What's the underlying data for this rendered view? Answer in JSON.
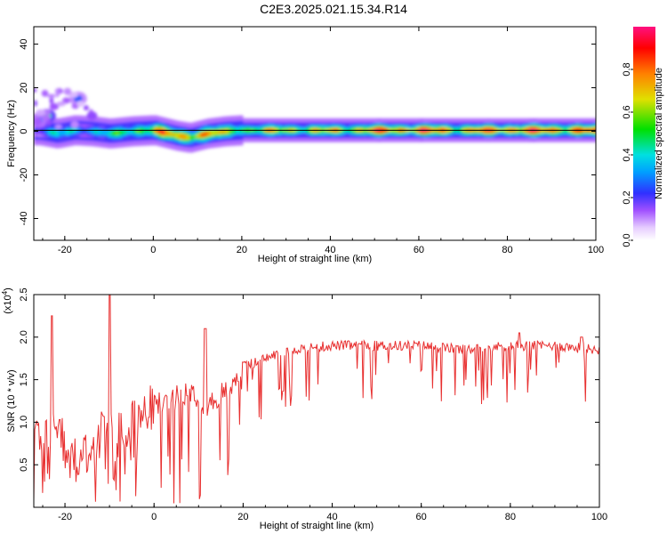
{
  "title": "C2E3.2025.021.15.34.R14",
  "chart_data": [
    {
      "type": "heatmap",
      "xlabel": "Height of straight line (km)",
      "ylabel": "Frequency (Hz)",
      "xlim": [
        -27,
        100
      ],
      "ylim": [
        -50,
        48
      ],
      "xticks": [
        -20,
        0,
        20,
        40,
        60,
        80,
        100
      ],
      "yticks": [
        -40,
        -20,
        0,
        20,
        40
      ],
      "colorbar": {
        "label": "Normalized spectral amplitude",
        "ticks": [
          0.0,
          0.2,
          0.4,
          0.6,
          0.8
        ],
        "range": [
          0,
          1
        ]
      },
      "ridge": {
        "x": [
          -26,
          -22,
          -18,
          -14,
          -10,
          -5,
          0,
          5,
          8,
          12,
          16,
          20,
          30,
          40,
          50,
          60,
          70,
          80,
          90,
          99
        ],
        "frequency": [
          0.5,
          -1,
          0.5,
          0,
          -1,
          0,
          0.5,
          -2,
          -3,
          -1,
          0,
          0.5,
          0.5,
          0.5,
          0.5,
          0.5,
          0.5,
          0.5,
          0.5,
          0.5
        ],
        "amplitude": [
          0.35,
          0.45,
          0.4,
          0.45,
          0.5,
          0.55,
          0.9,
          0.75,
          0.95,
          0.9,
          0.6,
          0.7,
          0.75,
          0.75,
          0.9,
          0.95,
          0.8,
          0.95,
          0.95,
          0.9
        ]
      },
      "secondary_blobs": [
        {
          "x": -24,
          "frequency": 7,
          "amplitude": 0.45
        },
        {
          "x": -17,
          "frequency": 15,
          "amplitude": 0.25
        },
        {
          "x": -26,
          "frequency": 5,
          "amplitude": 0.3
        }
      ]
    },
    {
      "type": "line",
      "xlabel": "Height of straight line (km)",
      "ylabel": "SNR (10 * v/v)",
      "y_multiplier_label": "(x10",
      "y_multiplier_exp": "4",
      "xlim": [
        -27,
        100
      ],
      "ylim": [
        0,
        2.5
      ],
      "xticks": [
        -20,
        0,
        20,
        40,
        60,
        80,
        100
      ],
      "yticks": [
        0.5,
        1.0,
        1.5,
        2.0,
        2.5
      ],
      "series": [
        {
          "color": "#e83030",
          "envelope_x": [
            -27,
            -24,
            -22,
            -20,
            -16,
            -12,
            -10,
            -8,
            -4,
            0,
            4,
            8,
            10,
            12,
            16,
            20,
            25,
            30,
            40,
            50,
            60,
            70,
            80,
            90,
            100
          ],
          "envelope_y": [
            0.8,
            0.9,
            1.0,
            0.7,
            0.6,
            0.85,
            1.0,
            0.9,
            1.0,
            1.2,
            1.25,
            1.4,
            1.3,
            1.2,
            1.35,
            1.65,
            1.75,
            1.85,
            1.9,
            1.9,
            1.9,
            1.85,
            1.9,
            1.9,
            1.85
          ],
          "peaks": [
            {
              "x": -23,
              "y": 2.25
            },
            {
              "x": -10,
              "y": 2.5
            },
            {
              "x": 11.5,
              "y": 2.1
            },
            {
              "x": 82,
              "y": 2.05
            },
            {
              "x": 96,
              "y": 2.0
            }
          ]
        }
      ]
    }
  ]
}
